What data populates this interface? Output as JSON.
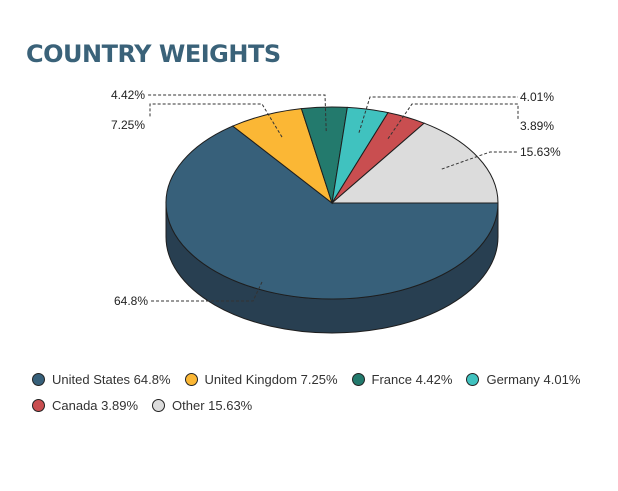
{
  "title": "COUNTRY WEIGHTS",
  "chart_data": {
    "type": "pie",
    "title": "COUNTRY WEIGHTS",
    "categories": [
      "United States",
      "United Kingdom",
      "France",
      "Germany",
      "Canada",
      "Other"
    ],
    "values": [
      64.8,
      7.25,
      4.42,
      4.01,
      3.89,
      15.63
    ],
    "data_labels": [
      "64.8%",
      "7.25%",
      "4.42%",
      "4.01%",
      "3.89%",
      "15.63%"
    ],
    "colors": [
      "#37607a",
      "#fbb735",
      "#237a6d",
      "#40c2bf",
      "#c94e50",
      "#dcdcdc"
    ],
    "side_colors": [
      "#283f51",
      "#b7862a",
      "#1b5a50",
      "#2f8f8c",
      "#8f3739",
      "#a9a9a9"
    ],
    "style": "3d",
    "legend_position": "bottom"
  },
  "legend": {
    "rows": [
      [
        {
          "label": "United States 64.8%",
          "color": "#37607a"
        },
        {
          "label": "United Kingdom 7.25%",
          "color": "#fbb735"
        },
        {
          "label": "France 4.42%",
          "color": "#237a6d"
        },
        {
          "label": "Germany 4.01%",
          "color": "#40c2bf"
        }
      ],
      [
        {
          "label": "Canada 3.89%",
          "color": "#c94e50"
        },
        {
          "label": "Other 15.63%",
          "color": "#dcdcdc"
        }
      ]
    ]
  }
}
